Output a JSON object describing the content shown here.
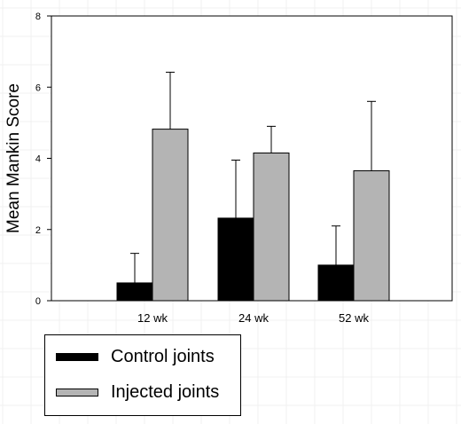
{
  "chart_data": {
    "type": "bar",
    "ylabel": "Mean Mankin Score",
    "xlabel": "",
    "title": "",
    "ylim": [
      0,
      8
    ],
    "yticks": [
      0,
      2,
      4,
      6,
      8
    ],
    "categories": [
      "12 wk",
      "24 wk",
      "52 wk"
    ],
    "series": [
      {
        "name": "Control joints",
        "color": "#000000",
        "values": [
          0.5,
          2.32,
          1.0
        ],
        "errors": [
          0.83,
          1.63,
          1.1
        ]
      },
      {
        "name": "Injected joints",
        "color": "#b4b4b4",
        "values": [
          4.82,
          4.15,
          3.65
        ],
        "errors": [
          1.6,
          0.75,
          1.95
        ]
      }
    ],
    "error_bars": "upper",
    "grid": false,
    "legend_position": "bottom-left"
  }
}
